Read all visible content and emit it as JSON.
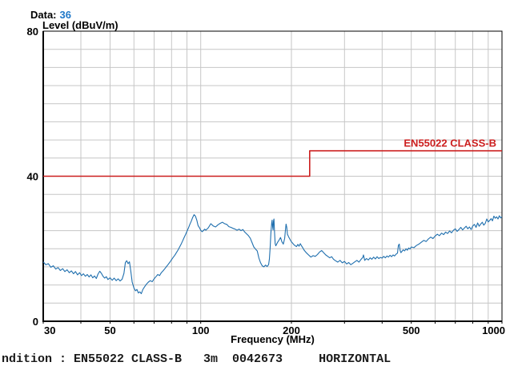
{
  "header": {
    "data_label": "Data:",
    "data_value": "36"
  },
  "footer": {
    "text": "ndition : EN55022 CLASS-B   3m  0042673     HORIZONTAL"
  },
  "colors": {
    "grid": "#c6c6c6",
    "axis": "#000000",
    "trace_blue": "#1f6fae",
    "limit_red": "#cc1f1f",
    "value_blue": "#1f78c8"
  },
  "chart_data": {
    "type": "line",
    "title": "",
    "x_axis": {
      "title": "Frequency (MHz)",
      "scale": "log",
      "min": 30,
      "max": 1000,
      "ticks": [
        30,
        50,
        100,
        200,
        500,
        1000
      ],
      "gridlines": [
        40,
        50,
        60,
        70,
        80,
        90,
        100,
        200,
        300,
        400,
        500,
        600,
        700,
        800,
        900
      ]
    },
    "y_axis": {
      "title": "Level (dBuV/m)",
      "min": 0,
      "max": 80,
      "ticks": [
        0,
        40,
        80
      ],
      "grid_step": 5
    },
    "series": [
      {
        "id": "limit-line",
        "name": "EN55022 CLASS-B limit",
        "color": "#cc1f1f",
        "width": 1.6,
        "label": "EN55022 CLASS-B",
        "label_anchor": [
          1000,
          47
        ],
        "points": [
          [
            30,
            40
          ],
          [
            230,
            40
          ],
          [
            230,
            47
          ],
          [
            1000,
            47
          ]
        ]
      },
      {
        "id": "measurement-trace",
        "name": "Measured emissions (Data 36)",
        "color": "#1f6fae",
        "width": 1.1,
        "points": [
          [
            30,
            16.4
          ],
          [
            30.6,
            15.6
          ],
          [
            31.2,
            15.9
          ],
          [
            31.8,
            14.9
          ],
          [
            32.4,
            15.3
          ],
          [
            33,
            14.4
          ],
          [
            33.6,
            14.8
          ],
          [
            34.2,
            14.0
          ],
          [
            34.8,
            14.5
          ],
          [
            35.4,
            13.7
          ],
          [
            36,
            14.2
          ],
          [
            36.6,
            13.4
          ],
          [
            37.2,
            13.9
          ],
          [
            37.8,
            13.1
          ],
          [
            38.4,
            13.7
          ],
          [
            39,
            12.8
          ],
          [
            39.6,
            13.4
          ],
          [
            40.2,
            12.6
          ],
          [
            40.8,
            13.1
          ],
          [
            41.4,
            12.4
          ],
          [
            42,
            12.9
          ],
          [
            42.6,
            12.2
          ],
          [
            43.2,
            12.8
          ],
          [
            43.8,
            12.0
          ],
          [
            44.4,
            12.5
          ],
          [
            45,
            11.8
          ],
          [
            45.6,
            13.0
          ],
          [
            46.2,
            13.8
          ],
          [
            46.8,
            13.2
          ],
          [
            47.4,
            12.4
          ],
          [
            48,
            11.9
          ],
          [
            48.6,
            12.3
          ],
          [
            49.2,
            11.5
          ],
          [
            50,
            12.0
          ],
          [
            50.8,
            11.3
          ],
          [
            51.6,
            11.9
          ],
          [
            52.4,
            11.2
          ],
          [
            53.2,
            11.7
          ],
          [
            54,
            11.1
          ],
          [
            54.8,
            11.6
          ],
          [
            55.6,
            13.2
          ],
          [
            56.2,
            16.2
          ],
          [
            56.8,
            16.7
          ],
          [
            57.4,
            15.9
          ],
          [
            58,
            16.4
          ],
          [
            58.6,
            13.8
          ],
          [
            59.2,
            10.8
          ],
          [
            60,
            9.2
          ],
          [
            60.7,
            8.4
          ],
          [
            61.4,
            8.8
          ],
          [
            62.1,
            7.8
          ],
          [
            62.8,
            8.1
          ],
          [
            63.5,
            7.6
          ],
          [
            64.2,
            8.7
          ],
          [
            65,
            9.4
          ],
          [
            66,
            10.2
          ],
          [
            67,
            10.8
          ],
          [
            68,
            11.2
          ],
          [
            69,
            10.9
          ],
          [
            70,
            11.7
          ],
          [
            71,
            12.3
          ],
          [
            72,
            12.9
          ],
          [
            73,
            12.6
          ],
          [
            74,
            13.4
          ],
          [
            75,
            13.9
          ],
          [
            76,
            14.5
          ],
          [
            77,
            15.1
          ],
          [
            78,
            15.7
          ],
          [
            79,
            16.3
          ],
          [
            80,
            17.0
          ],
          [
            81,
            17.6
          ],
          [
            82,
            18.2
          ],
          [
            83,
            18.9
          ],
          [
            84,
            19.6
          ],
          [
            85,
            20.4
          ],
          [
            86,
            21.2
          ],
          [
            87,
            22.1
          ],
          [
            88,
            23.0
          ],
          [
            89,
            23.9
          ],
          [
            90,
            24.8
          ],
          [
            91,
            25.7
          ],
          [
            92,
            26.7
          ],
          [
            93,
            27.6
          ],
          [
            94,
            28.6
          ],
          [
            95,
            29.4
          ],
          [
            96,
            29.0
          ],
          [
            97,
            27.9
          ],
          [
            98,
            26.4
          ],
          [
            99,
            25.8
          ],
          [
            100,
            25.1
          ],
          [
            101,
            24.7
          ],
          [
            102,
            25.0
          ],
          [
            103,
            25.4
          ],
          [
            104,
            25.1
          ],
          [
            106,
            25.8
          ],
          [
            108,
            26.9
          ],
          [
            110,
            26.3
          ],
          [
            112,
            26.0
          ],
          [
            114,
            26.6
          ],
          [
            116,
            27.0
          ],
          [
            118,
            27.3
          ],
          [
            120,
            26.9
          ],
          [
            122,
            26.7
          ],
          [
            124,
            26.1
          ],
          [
            126,
            25.9
          ],
          [
            128,
            25.6
          ],
          [
            130,
            25.4
          ],
          [
            132,
            25.1
          ],
          [
            134,
            25.4
          ],
          [
            136,
            25.0
          ],
          [
            138,
            25.3
          ],
          [
            140,
            24.6
          ],
          [
            142,
            24.1
          ],
          [
            144,
            23.6
          ],
          [
            146,
            22.9
          ],
          [
            148,
            21.7
          ],
          [
            150,
            20.5
          ],
          [
            152,
            19.9
          ],
          [
            154,
            19.4
          ],
          [
            156,
            17.4
          ],
          [
            158,
            16.1
          ],
          [
            160,
            15.3
          ],
          [
            162,
            15.0
          ],
          [
            164,
            15.5
          ],
          [
            166,
            15.1
          ],
          [
            168,
            15.6
          ],
          [
            169,
            17.2
          ],
          [
            170,
            20.2
          ],
          [
            171,
            24.5
          ],
          [
            172,
            27.2
          ],
          [
            172.6,
            27.9
          ],
          [
            173.2,
            26.1
          ],
          [
            173.8,
            25.2
          ],
          [
            174.4,
            27.6
          ],
          [
            175,
            28.2
          ],
          [
            175.8,
            24.6
          ],
          [
            176.6,
            21.4
          ],
          [
            177.5,
            20.8
          ],
          [
            178.5,
            21.2
          ],
          [
            180,
            21.8
          ],
          [
            182,
            22.4
          ],
          [
            184,
            23.1
          ],
          [
            186,
            21.9
          ],
          [
            188,
            21.3
          ],
          [
            190,
            22.9
          ],
          [
            191,
            25.1
          ],
          [
            192,
            26.8
          ],
          [
            193,
            25.9
          ],
          [
            194,
            24.0
          ],
          [
            196,
            23.2
          ],
          [
            198,
            22.5
          ],
          [
            200,
            21.9
          ],
          [
            202,
            21.5
          ],
          [
            204,
            21.1
          ],
          [
            206,
            20.8
          ],
          [
            208,
            20.6
          ],
          [
            210,
            21.2
          ],
          [
            212,
            20.7
          ],
          [
            214,
            21.4
          ],
          [
            216,
            20.8
          ],
          [
            218,
            20.3
          ],
          [
            220,
            19.7
          ],
          [
            224,
            18.9
          ],
          [
            228,
            18.3
          ],
          [
            232,
            17.7
          ],
          [
            236,
            18.1
          ],
          [
            240,
            17.9
          ],
          [
            244,
            18.4
          ],
          [
            248,
            19.1
          ],
          [
            252,
            19.5
          ],
          [
            256,
            18.9
          ],
          [
            260,
            18.3
          ],
          [
            264,
            17.9
          ],
          [
            268,
            17.5
          ],
          [
            272,
            17.8
          ],
          [
            276,
            17.1
          ],
          [
            280,
            16.7
          ],
          [
            285,
            16.3
          ],
          [
            290,
            16.8
          ],
          [
            295,
            16.1
          ],
          [
            300,
            16.5
          ],
          [
            305,
            15.8
          ],
          [
            310,
            16.2
          ],
          [
            315,
            15.6
          ],
          [
            320,
            16.0
          ],
          [
            325,
            16.4
          ],
          [
            330,
            16.8
          ],
          [
            335,
            16.3
          ],
          [
            340,
            17.0
          ],
          [
            345,
            17.6
          ],
          [
            347,
            18.3
          ],
          [
            350,
            16.8
          ],
          [
            355,
            17.3
          ],
          [
            360,
            16.9
          ],
          [
            365,
            17.5
          ],
          [
            370,
            17.1
          ],
          [
            375,
            17.7
          ],
          [
            380,
            17.2
          ],
          [
            385,
            17.8
          ],
          [
            390,
            17.3
          ],
          [
            395,
            17.6
          ],
          [
            400,
            17.4
          ],
          [
            405,
            17.9
          ],
          [
            410,
            17.5
          ],
          [
            415,
            18.0
          ],
          [
            420,
            17.7
          ],
          [
            425,
            18.2
          ],
          [
            430,
            17.8
          ],
          [
            435,
            18.3
          ],
          [
            440,
            18.0
          ],
          [
            445,
            18.5
          ],
          [
            450,
            18.8
          ],
          [
            453,
            20.9
          ],
          [
            456,
            21.3
          ],
          [
            459,
            19.5
          ],
          [
            462,
            18.9
          ],
          [
            466,
            19.3
          ],
          [
            470,
            19.7
          ],
          [
            475,
            19.4
          ],
          [
            480,
            20.0
          ],
          [
            485,
            19.6
          ],
          [
            490,
            20.2
          ],
          [
            495,
            19.9
          ],
          [
            500,
            20.5
          ],
          [
            510,
            20.3
          ],
          [
            520,
            20.9
          ],
          [
            530,
            21.3
          ],
          [
            540,
            21.8
          ],
          [
            550,
            22.3
          ],
          [
            560,
            22.0
          ],
          [
            570,
            22.7
          ],
          [
            580,
            23.2
          ],
          [
            590,
            22.8
          ],
          [
            600,
            23.5
          ],
          [
            610,
            24.0
          ],
          [
            620,
            23.6
          ],
          [
            630,
            24.3
          ],
          [
            640,
            23.9
          ],
          [
            650,
            24.6
          ],
          [
            660,
            24.2
          ],
          [
            670,
            24.9
          ],
          [
            680,
            24.4
          ],
          [
            690,
            25.1
          ],
          [
            700,
            25.5
          ],
          [
            710,
            24.8
          ],
          [
            720,
            25.3
          ],
          [
            730,
            25.9
          ],
          [
            740,
            25.2
          ],
          [
            750,
            25.7
          ],
          [
            760,
            26.2
          ],
          [
            770,
            25.5
          ],
          [
            780,
            26.0
          ],
          [
            790,
            25.3
          ],
          [
            800,
            26.3
          ],
          [
            810,
            26.7
          ],
          [
            820,
            25.9
          ],
          [
            830,
            27.1
          ],
          [
            840,
            26.2
          ],
          [
            850,
            26.8
          ],
          [
            860,
            27.3
          ],
          [
            870,
            26.5
          ],
          [
            880,
            27.0
          ],
          [
            890,
            28.2
          ],
          [
            900,
            27.4
          ],
          [
            910,
            27.8
          ],
          [
            920,
            28.3
          ],
          [
            930,
            27.7
          ],
          [
            940,
            29.0
          ],
          [
            950,
            28.4
          ],
          [
            960,
            28.8
          ],
          [
            970,
            28.2
          ],
          [
            980,
            29.1
          ],
          [
            990,
            28.5
          ],
          [
            1000,
            28.8
          ]
        ]
      }
    ]
  }
}
